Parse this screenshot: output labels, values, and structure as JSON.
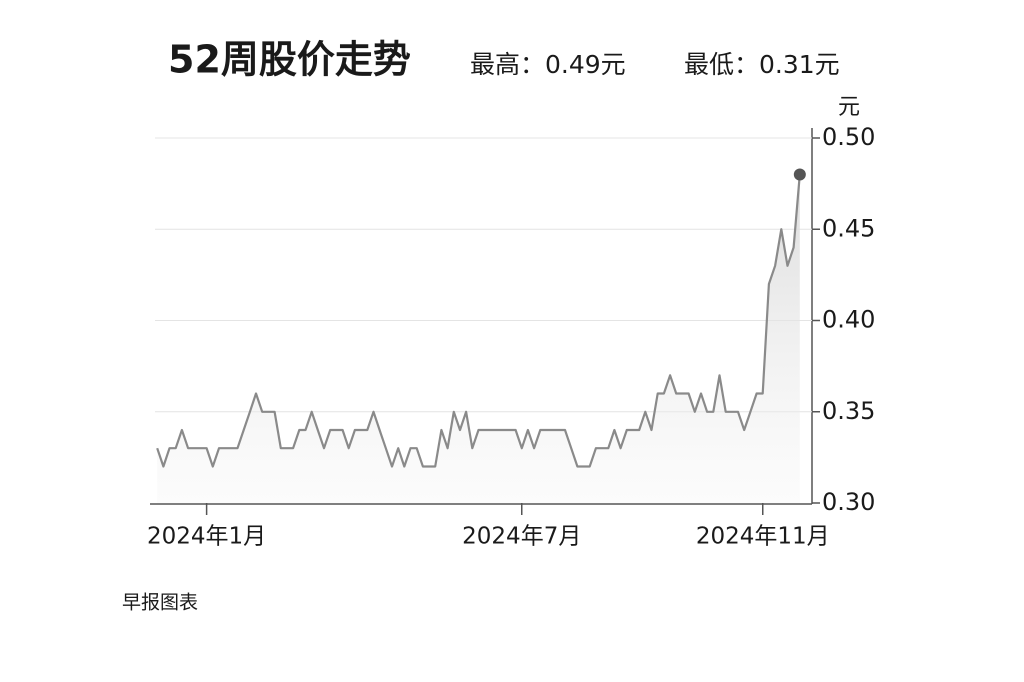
{
  "chart_data": {
    "type": "line",
    "title": "52周股价走势",
    "subtitle_high": "最高：0.49元",
    "subtitle_low": "最低：0.31元",
    "y_unit": "元",
    "source": "早报图表",
    "x": [
      0,
      0.5,
      1,
      1.5,
      2,
      2.5,
      3,
      3.5,
      4,
      4.5,
      5,
      5.5,
      6,
      6.5,
      7,
      7.5,
      8,
      8.5,
      9,
      9.5,
      10,
      10.5,
      11,
      11.5,
      12,
      12.5,
      13,
      13.5,
      14,
      14.5,
      15,
      15.5,
      16,
      16.5,
      17,
      17.5,
      18,
      18.5,
      19,
      19.5,
      20,
      20.5,
      21,
      21.5,
      22,
      22.5,
      23,
      23.5,
      24,
      24.5,
      25,
      25.5,
      26,
      26.5,
      27,
      27.5,
      28,
      28.5,
      29,
      29.5,
      30,
      30.5,
      31,
      31.5,
      32,
      32.5,
      33,
      33.5,
      34,
      34.5,
      35,
      35.5,
      36,
      36.5,
      37,
      37.5,
      38,
      38.5,
      39,
      39.5,
      40,
      40.5,
      41,
      41.5,
      42,
      42.5,
      43,
      43.5,
      44,
      44.5,
      45,
      45.5,
      46,
      46.5,
      47,
      47.5,
      48,
      48.5,
      49,
      49.5,
      50,
      50.5,
      51,
      51.5,
      52
    ],
    "series": [
      {
        "color": "#8a8a8a",
        "values": [
          0.33,
          0.32,
          0.33,
          0.33,
          0.34,
          0.33,
          0.33,
          0.33,
          0.33,
          0.32,
          0.33,
          0.33,
          0.33,
          0.33,
          0.34,
          0.35,
          0.36,
          0.35,
          0.35,
          0.35,
          0.33,
          0.33,
          0.33,
          0.34,
          0.34,
          0.35,
          0.34,
          0.33,
          0.34,
          0.34,
          0.34,
          0.33,
          0.34,
          0.34,
          0.34,
          0.35,
          0.34,
          0.33,
          0.32,
          0.33,
          0.32,
          0.33,
          0.33,
          0.32,
          0.32,
          0.32,
          0.34,
          0.33,
          0.35,
          0.34,
          0.35,
          0.33,
          0.34,
          0.34,
          0.34,
          0.34,
          0.34,
          0.34,
          0.34,
          0.33,
          0.34,
          0.33,
          0.34,
          0.34,
          0.34,
          0.34,
          0.34,
          0.33,
          0.32,
          0.32,
          0.32,
          0.33,
          0.33,
          0.33,
          0.34,
          0.33,
          0.34,
          0.34,
          0.34,
          0.35,
          0.34,
          0.36,
          0.36,
          0.37,
          0.36,
          0.36,
          0.36,
          0.35,
          0.36,
          0.35,
          0.35,
          0.37,
          0.35,
          0.35,
          0.35,
          0.34,
          0.35,
          0.36,
          0.36,
          0.42,
          0.43,
          0.45,
          0.43,
          0.44,
          0.48
        ]
      }
    ],
    "xlim": [
      -0.5,
      52.5
    ],
    "xticks": [
      {
        "value": 4,
        "label": "2024年1月"
      },
      {
        "value": 29.5,
        "label": "2024年7月"
      },
      {
        "value": 49,
        "label": "2024年11月"
      }
    ],
    "ylim": [
      0.3,
      0.5
    ],
    "yticks": [
      {
        "value": 0.3,
        "label": "0.30"
      },
      {
        "value": 0.35,
        "label": "0.35"
      },
      {
        "value": 0.4,
        "label": "0.40"
      },
      {
        "value": 0.45,
        "label": "0.45"
      },
      {
        "value": 0.5,
        "label": "0.50"
      }
    ],
    "grid": true,
    "end_marker": true
  }
}
